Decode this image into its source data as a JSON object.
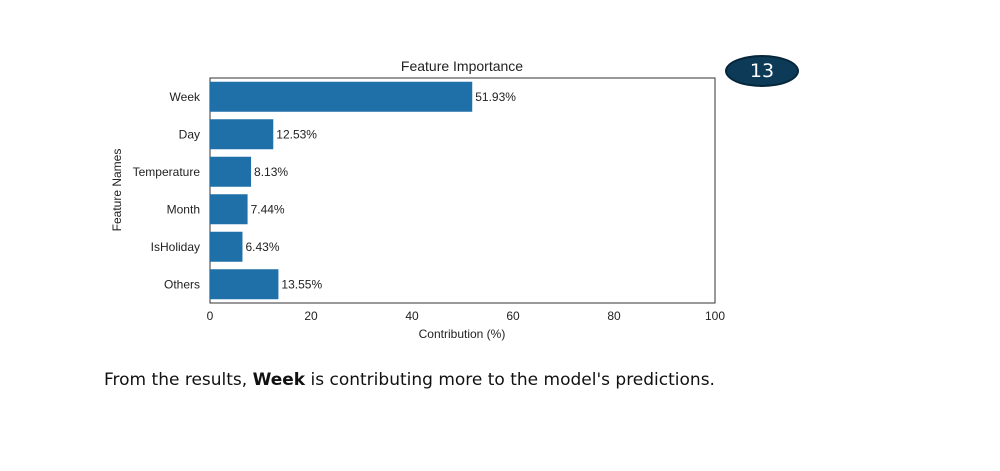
{
  "badge": {
    "label": "13"
  },
  "caption": {
    "prefix": "From the results, ",
    "emphasis": "Week",
    "suffix": " is contributing more to the model's predictions."
  },
  "chart_data": {
    "type": "bar",
    "orientation": "horizontal",
    "title": "Feature Importance",
    "xlabel": "Contribution (%)",
    "ylabel": "Feature Names",
    "categories": [
      "Week",
      "Day",
      "Temperature",
      "Month",
      "IsHoliday",
      "Others"
    ],
    "values": [
      51.93,
      12.53,
      8.13,
      7.44,
      6.43,
      13.55
    ],
    "data_labels": [
      "51.93%",
      "12.53%",
      "8.13%",
      "7.44%",
      "6.43%",
      "13.55%"
    ],
    "xlim": [
      0,
      100
    ],
    "xticks": [
      0,
      20,
      40,
      60,
      80,
      100
    ],
    "bar_color": "#1f6fa8",
    "grid": false
  }
}
